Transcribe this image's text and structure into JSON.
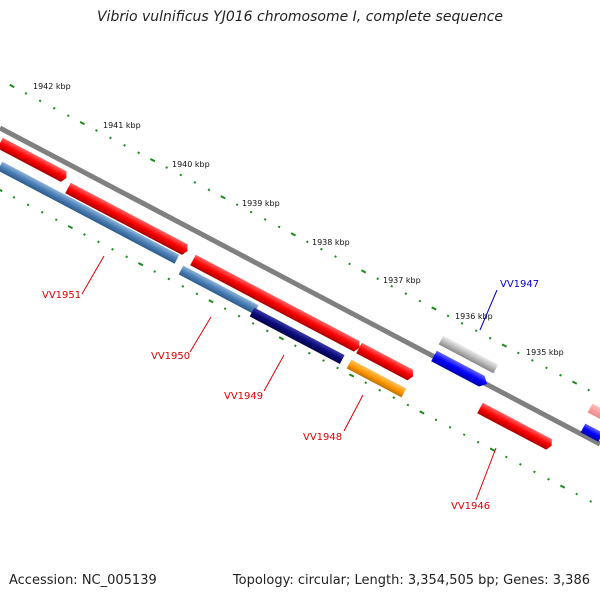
{
  "title": "Vibrio vulnificus YJ016 chromosome I, complete sequence",
  "accession_text": "Accession: NC_005139",
  "topology_text": "Topology: circular; Length: 3,354,505 bp; Genes: 3,386",
  "ticks": [
    "1942 kbp",
    "1941 kbp",
    "1940 kbp",
    "1939 kbp",
    "1938 kbp",
    "1937 kbp",
    "1936 kbp",
    "1935 kbp"
  ],
  "genes": [
    {
      "name": "VV1951",
      "strand": "reverse",
      "color": "#dd0000"
    },
    {
      "name": "VV1950",
      "strand": "reverse",
      "color": "#dd0000"
    },
    {
      "name": "VV1949",
      "strand": "reverse",
      "color": "#dd0000"
    },
    {
      "name": "VV1948",
      "strand": "reverse",
      "color": "#dd0000"
    },
    {
      "name": "VV1947",
      "strand": "forward",
      "color": "#0000cc"
    },
    {
      "name": "VV1946",
      "strand": "reverse",
      "color": "#dd0000"
    }
  ],
  "colors": {
    "red_feature": "#ff0000",
    "steelblue_feature": "#4a7fb5",
    "navy_feature": "#0a0a7a",
    "orange_feature": "#ff9900",
    "gray_feature": "#bbbbbb",
    "blue_feature": "#0000ff",
    "backbone": "#808080",
    "tick_green": "#1a8a1a"
  }
}
